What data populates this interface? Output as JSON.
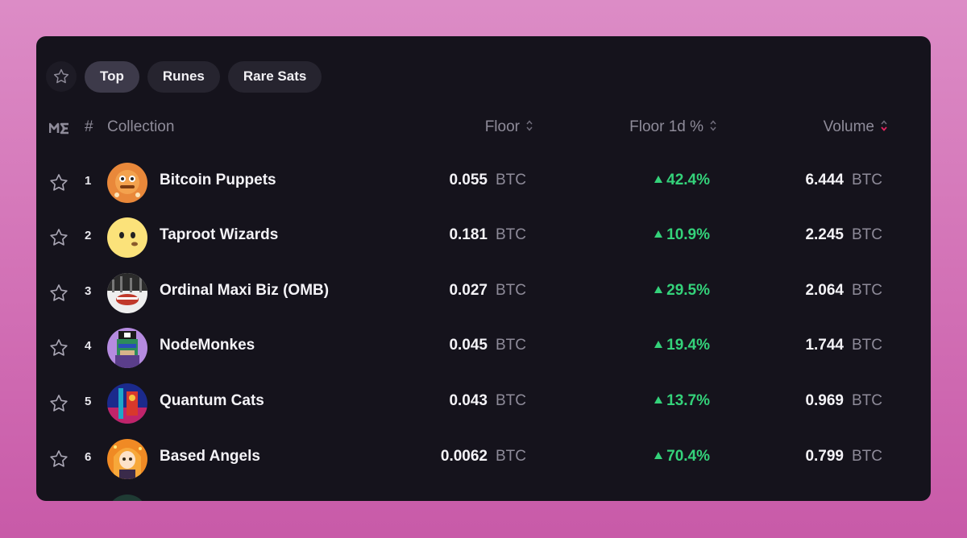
{
  "tabs": [
    {
      "label": "Top",
      "active": true
    },
    {
      "label": "Runes",
      "active": false
    },
    {
      "label": "Rare Sats",
      "active": false
    }
  ],
  "header": {
    "hash": "#",
    "collection": "Collection",
    "floor": "Floor",
    "floor_1d": "Floor 1d %",
    "volume": "Volume"
  },
  "icons": {
    "favorite": "star-outline-icon",
    "logo": "magic-eden-logo-icon",
    "sort": "sort-arrows-icon",
    "up": "triangle-up-icon"
  },
  "colors": {
    "positive": "#34d27a",
    "sort_active": "#e0245e",
    "card_bg": "#15131c"
  },
  "rows": [
    {
      "rank": "1",
      "name": "Bitcoin Puppets",
      "floor": "0.055",
      "floor_unit": "BTC",
      "change": "42.4%",
      "volume": "6.444",
      "volume_unit": "BTC"
    },
    {
      "rank": "2",
      "name": "Taproot Wizards",
      "floor": "0.181",
      "floor_unit": "BTC",
      "change": "10.9%",
      "volume": "2.245",
      "volume_unit": "BTC"
    },
    {
      "rank": "3",
      "name": "Ordinal Maxi Biz (OMB)",
      "floor": "0.027",
      "floor_unit": "BTC",
      "change": "29.5%",
      "volume": "2.064",
      "volume_unit": "BTC"
    },
    {
      "rank": "4",
      "name": "NodeMonkes",
      "floor": "0.045",
      "floor_unit": "BTC",
      "change": "19.4%",
      "volume": "1.744",
      "volume_unit": "BTC"
    },
    {
      "rank": "5",
      "name": "Quantum Cats",
      "floor": "0.043",
      "floor_unit": "BTC",
      "change": "13.7%",
      "volume": "0.969",
      "volume_unit": "BTC"
    },
    {
      "rank": "6",
      "name": "Based Angels",
      "floor": "0.0062",
      "floor_unit": "BTC",
      "change": "70.4%",
      "volume": "0.799",
      "volume_unit": "BTC"
    }
  ]
}
